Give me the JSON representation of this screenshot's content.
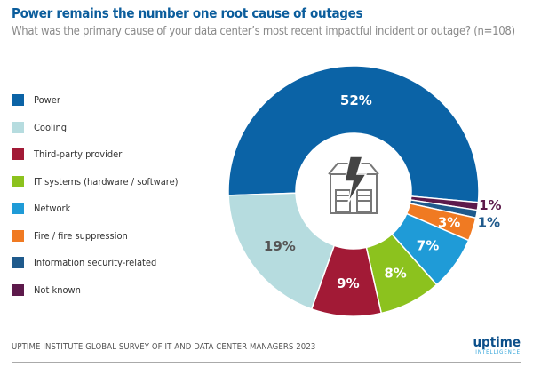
{
  "chart_data": {
    "type": "pie",
    "donut": true,
    "title": "Power remains the number one root cause of outages",
    "subtitle": "What was the primary cause of your data center’s most recent impactful incident or outage? (n=108)",
    "legend_position": "left",
    "categories": [
      "Power",
      "Cooling",
      "Third-party provider",
      "IT systems (hardware / software)",
      "Network",
      "Fire / fire suppression",
      "Information security-related",
      "Not known"
    ],
    "values": [
      52,
      19,
      9,
      8,
      7,
      3,
      1,
      1
    ],
    "labels": [
      "52%",
      "19%",
      "9%",
      "8%",
      "7%",
      "3%",
      "1%",
      "1%"
    ],
    "colors": [
      "#0b63a6",
      "#b6dcdf",
      "#a21a36",
      "#8cc21e",
      "#1f9bd7",
      "#f07a22",
      "#1f5a8c",
      "#5d1a4b"
    ],
    "center_icon": "building-lightning-icon"
  },
  "footer": "UPTIME INSTITUTE GLOBAL SURVEY OF IT AND DATA CENTER MANAGERS 2023",
  "logo": {
    "name": "uptime",
    "sub": "INTELLIGENCE"
  }
}
